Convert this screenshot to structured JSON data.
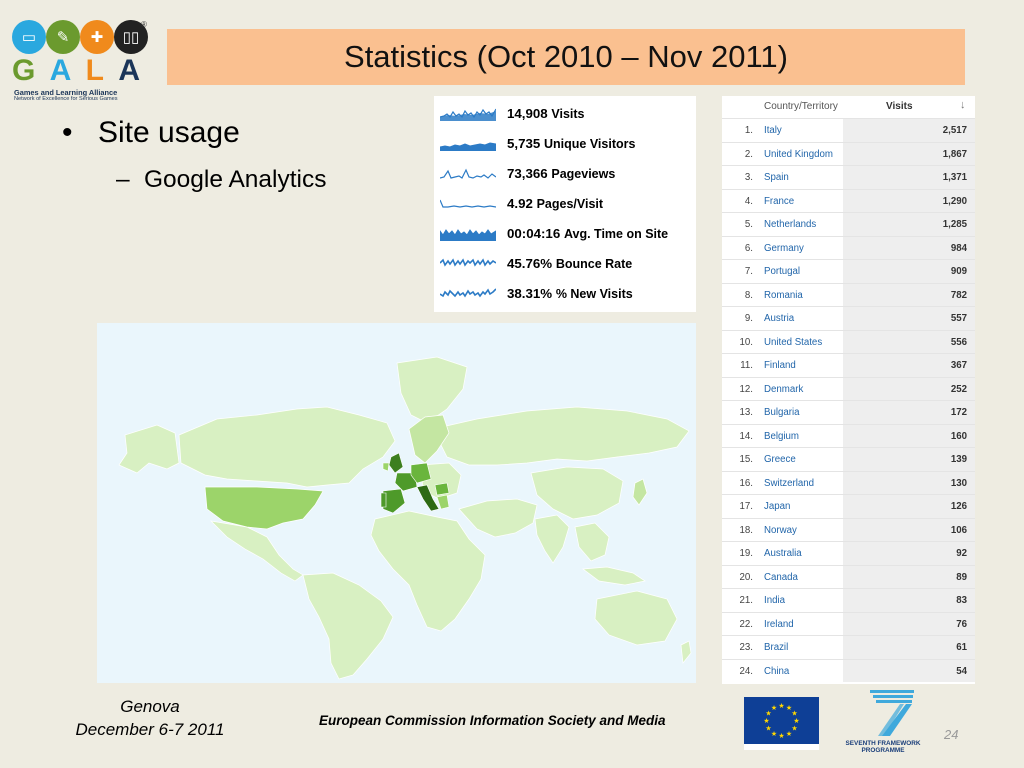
{
  "logo": {
    "letters": [
      "G",
      "A",
      "L",
      "A"
    ],
    "tagline": "Games and Learning Alliance",
    "subtagline": "Network of Excellence for Serious Games",
    "registered": "®",
    "circle_colors": [
      "#2AA8DF",
      "#6B9A2E",
      "#F08A1C",
      "#222222"
    ],
    "letter_colors": [
      "#6B9A2E",
      "#2AA8DF",
      "#F08A1C",
      "#1b3558"
    ]
  },
  "title": "Statistics (Oct 2010 – Nov 2011)",
  "bullets": {
    "level1": "Site usage",
    "level1_marker": "•",
    "level2": "Google Analytics",
    "level2_marker": "–"
  },
  "stats": [
    {
      "value": "14,908",
      "label": "Visits"
    },
    {
      "value": "5,735",
      "label": "Unique Visitors"
    },
    {
      "value": "73,366",
      "label": "Pageviews"
    },
    {
      "value": "4.92",
      "label": "Pages/Visit"
    },
    {
      "value": "00:04:16",
      "label": "Avg. Time on Site"
    },
    {
      "value": "45.76%",
      "label": "Bounce Rate"
    },
    {
      "value": "38.31%",
      "label": "% New Visits"
    }
  ],
  "table": {
    "col_country": "Country/Territory",
    "col_visits": "Visits",
    "sort_icon": "↓",
    "rows": [
      {
        "idx": "1.",
        "country": "Italy",
        "visits": "2,517"
      },
      {
        "idx": "2.",
        "country": "United Kingdom",
        "visits": "1,867"
      },
      {
        "idx": "3.",
        "country": "Spain",
        "visits": "1,371"
      },
      {
        "idx": "4.",
        "country": "France",
        "visits": "1,290"
      },
      {
        "idx": "5.",
        "country": "Netherlands",
        "visits": "1,285"
      },
      {
        "idx": "6.",
        "country": "Germany",
        "visits": "984"
      },
      {
        "idx": "7.",
        "country": "Portugal",
        "visits": "909"
      },
      {
        "idx": "8.",
        "country": "Romania",
        "visits": "782"
      },
      {
        "idx": "9.",
        "country": "Austria",
        "visits": "557"
      },
      {
        "idx": "10.",
        "country": "United States",
        "visits": "556"
      },
      {
        "idx": "11.",
        "country": "Finland",
        "visits": "367"
      },
      {
        "idx": "12.",
        "country": "Denmark",
        "visits": "252"
      },
      {
        "idx": "13.",
        "country": "Bulgaria",
        "visits": "172"
      },
      {
        "idx": "14.",
        "country": "Belgium",
        "visits": "160"
      },
      {
        "idx": "15.",
        "country": "Greece",
        "visits": "139"
      },
      {
        "idx": "16.",
        "country": "Switzerland",
        "visits": "130"
      },
      {
        "idx": "17.",
        "country": "Japan",
        "visits": "126"
      },
      {
        "idx": "18.",
        "country": "Norway",
        "visits": "106"
      },
      {
        "idx": "19.",
        "country": "Australia",
        "visits": "92"
      },
      {
        "idx": "20.",
        "country": "Canada",
        "visits": "89"
      },
      {
        "idx": "21.",
        "country": "India",
        "visits": "83"
      },
      {
        "idx": "22.",
        "country": "Ireland",
        "visits": "76"
      },
      {
        "idx": "23.",
        "country": "Brazil",
        "visits": "61"
      },
      {
        "idx": "24.",
        "country": "China",
        "visits": "54"
      }
    ]
  },
  "footer": {
    "place": "Genova",
    "date": "December 6-7 2011",
    "commission": "European Commission Information Society and Media",
    "fp7_line1": "SEVENTH FRAMEWORK",
    "fp7_line2": "PROGRAMME",
    "page": "24"
  },
  "colors": {
    "background": "#EEECE1",
    "title_bar": "#FAC090",
    "map_ocean": "#EAF6FC",
    "map_land": "#D8F0C2",
    "map_highlight": "#9CD46A",
    "map_strong": "#4E9A2A",
    "map_max": "#2D6A14",
    "spark_blue": "#2C7BC6",
    "link_blue": "#2266aa"
  }
}
